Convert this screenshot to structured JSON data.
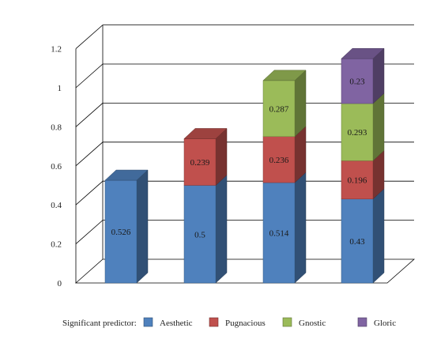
{
  "chart_data": {
    "type": "bar",
    "stacked": true,
    "three_d": true,
    "categories": [
      "",
      "",
      "",
      ""
    ],
    "series": [
      {
        "name": "Aesthetic",
        "values": [
          0.526,
          0.5,
          0.514,
          0.43
        ],
        "labels": [
          "0.526",
          "0.5",
          "0.514",
          "0.43"
        ],
        "color": "#4f81bd"
      },
      {
        "name": "Pugnacious",
        "values": [
          0,
          0.239,
          0.236,
          0.196
        ],
        "labels": [
          "",
          "0.239",
          "0.236",
          "0.196"
        ],
        "color": "#c0504d"
      },
      {
        "name": "Gnostic",
        "values": [
          0,
          0,
          0.287,
          0.293
        ],
        "labels": [
          "",
          "",
          "0.287",
          "0.293"
        ],
        "color": "#9bbb59"
      },
      {
        "name": "Gloric",
        "values": [
          0,
          0,
          0,
          0.23
        ],
        "labels": [
          "",
          "",
          "",
          "0.23"
        ],
        "color": "#8064a2"
      }
    ],
    "yticks": [
      "0",
      "0.2",
      "0.4",
      "0.6",
      "0.8",
      "1",
      "1.2"
    ],
    "ylim": [
      0,
      1.2
    ],
    "grid": true,
    "legend": {
      "title": "Significant predictor:",
      "placement": "bottom"
    }
  }
}
